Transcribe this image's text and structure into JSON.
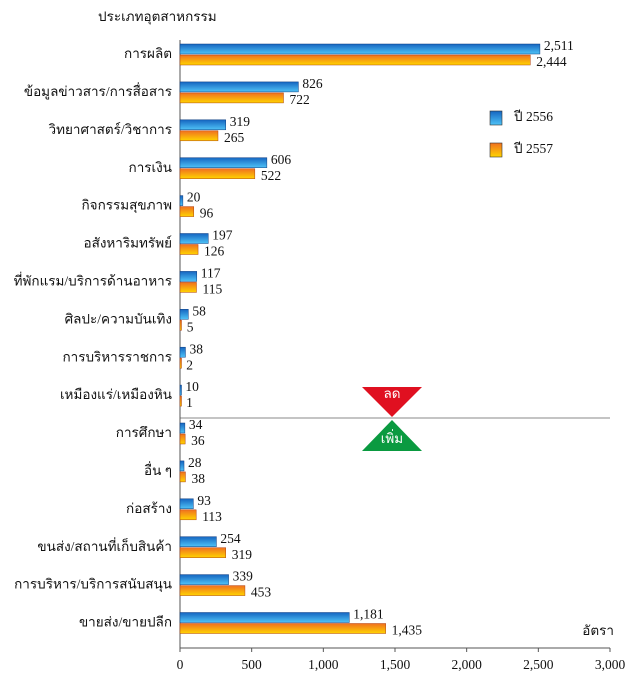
{
  "chart_data": {
    "type": "barh",
    "y_axis_label": "ประเภทอุตสาหกรรม",
    "x_axis_label": "อัตรา",
    "categories": [
      "การผลิต",
      "ข้อมูลข่าวสาร/การสื่อสาร",
      "วิทยาศาสตร์/วิชาการ",
      "การเงิน",
      "กิจกรรมสุขภาพ",
      "อสังหาริมทรัพย์",
      "ที่พักแรม/บริการด้านอาหาร",
      "ศิลปะ/ความบันเทิง",
      "การบริหารราชการ",
      "เหมืองแร่/เหมืองหิน",
      "การศึกษา",
      "อื่น ๆ",
      "ก่อสร้าง",
      "ขนส่ง/สถานที่เก็บสินค้า",
      "การบริหาร/บริการสนับสนุน",
      "ขายส่ง/ขายปลีก"
    ],
    "series": [
      {
        "name": "ปี 2556",
        "color": "#1565c0",
        "values": [
          2511,
          826,
          319,
          606,
          20,
          197,
          117,
          58,
          38,
          10,
          34,
          28,
          93,
          254,
          339,
          1181
        ],
        "value_labels": [
          "2,511",
          "826",
          "319",
          "606",
          "20",
          "197",
          "117",
          "58",
          "38",
          "10",
          "34",
          "28",
          "93",
          "254",
          "339",
          "1,181"
        ]
      },
      {
        "name": "ปี 2557",
        "color": "#f07020",
        "values": [
          2444,
          722,
          265,
          522,
          96,
          126,
          115,
          5,
          2,
          1,
          36,
          38,
          113,
          319,
          453,
          1435
        ],
        "value_labels": [
          "2,444",
          "722",
          "265",
          "522",
          "96",
          "126",
          "115",
          "5",
          "2",
          "1",
          "36",
          "38",
          "113",
          "319",
          "453",
          "1,435"
        ]
      }
    ],
    "annotations": [
      "ลด",
      "เพิ่ม"
    ],
    "xlim": [
      0,
      3000
    ],
    "xticks": [
      0,
      500,
      {
        "value": 1000,
        "label": "1,000"
      },
      {
        "value": 1500,
        "label": "1,500"
      },
      {
        "value": 2000,
        "label": "2,000"
      },
      {
        "value": 2500,
        "label": "2,500"
      },
      {
        "value": 3000,
        "label": "3,000"
      }
    ],
    "legend": "right"
  }
}
